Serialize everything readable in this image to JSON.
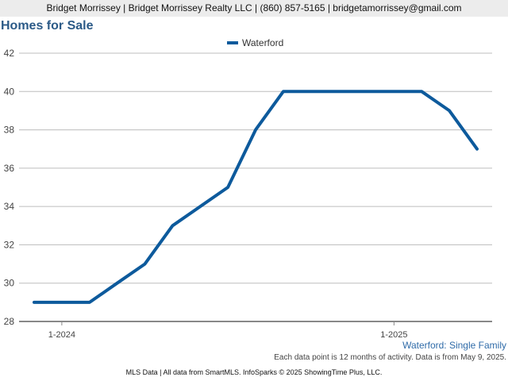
{
  "header": {
    "contact": "Bridget Morrissey | Bridget Morrissey Realty LLC | (860) 857-5165 | bridgetamorrissey@gmail.com"
  },
  "chart_data": {
    "type": "line",
    "title": "Homes for Sale",
    "subtitle": "Waterford: Single Family",
    "xlabel": "",
    "ylabel": "",
    "x_tick_labels": [
      "1-2024",
      "1-2025"
    ],
    "ylim": [
      28,
      42
    ],
    "y_ticks": [
      28,
      30,
      32,
      34,
      36,
      38,
      40,
      42
    ],
    "grid": true,
    "legend_position": "top-center",
    "colors": {
      "series": "#0d5a9c",
      "grid": "#bdbdbd",
      "axis": "#888888"
    },
    "series": [
      {
        "name": "Waterford",
        "x": [
          "2023-12",
          "2024-01",
          "2024-02",
          "2024-03",
          "2024-04",
          "2024-05",
          "2024-06",
          "2024-07",
          "2024-08",
          "2024-09",
          "2024-10",
          "2024-11",
          "2024-12",
          "2025-01",
          "2025-02",
          "2025-03",
          "2025-04"
        ],
        "values": [
          29,
          29,
          29,
          30,
          31,
          33,
          34,
          35,
          38,
          40,
          40,
          40,
          40,
          40,
          40,
          39,
          37
        ]
      }
    ]
  },
  "footnote": "Each data point is 12 months of activity. Data is from May 9, 2025.",
  "footer": "MLS Data | All data from SmartMLS. InfoSparks © 2025 ShowingTime Plus, LLC."
}
